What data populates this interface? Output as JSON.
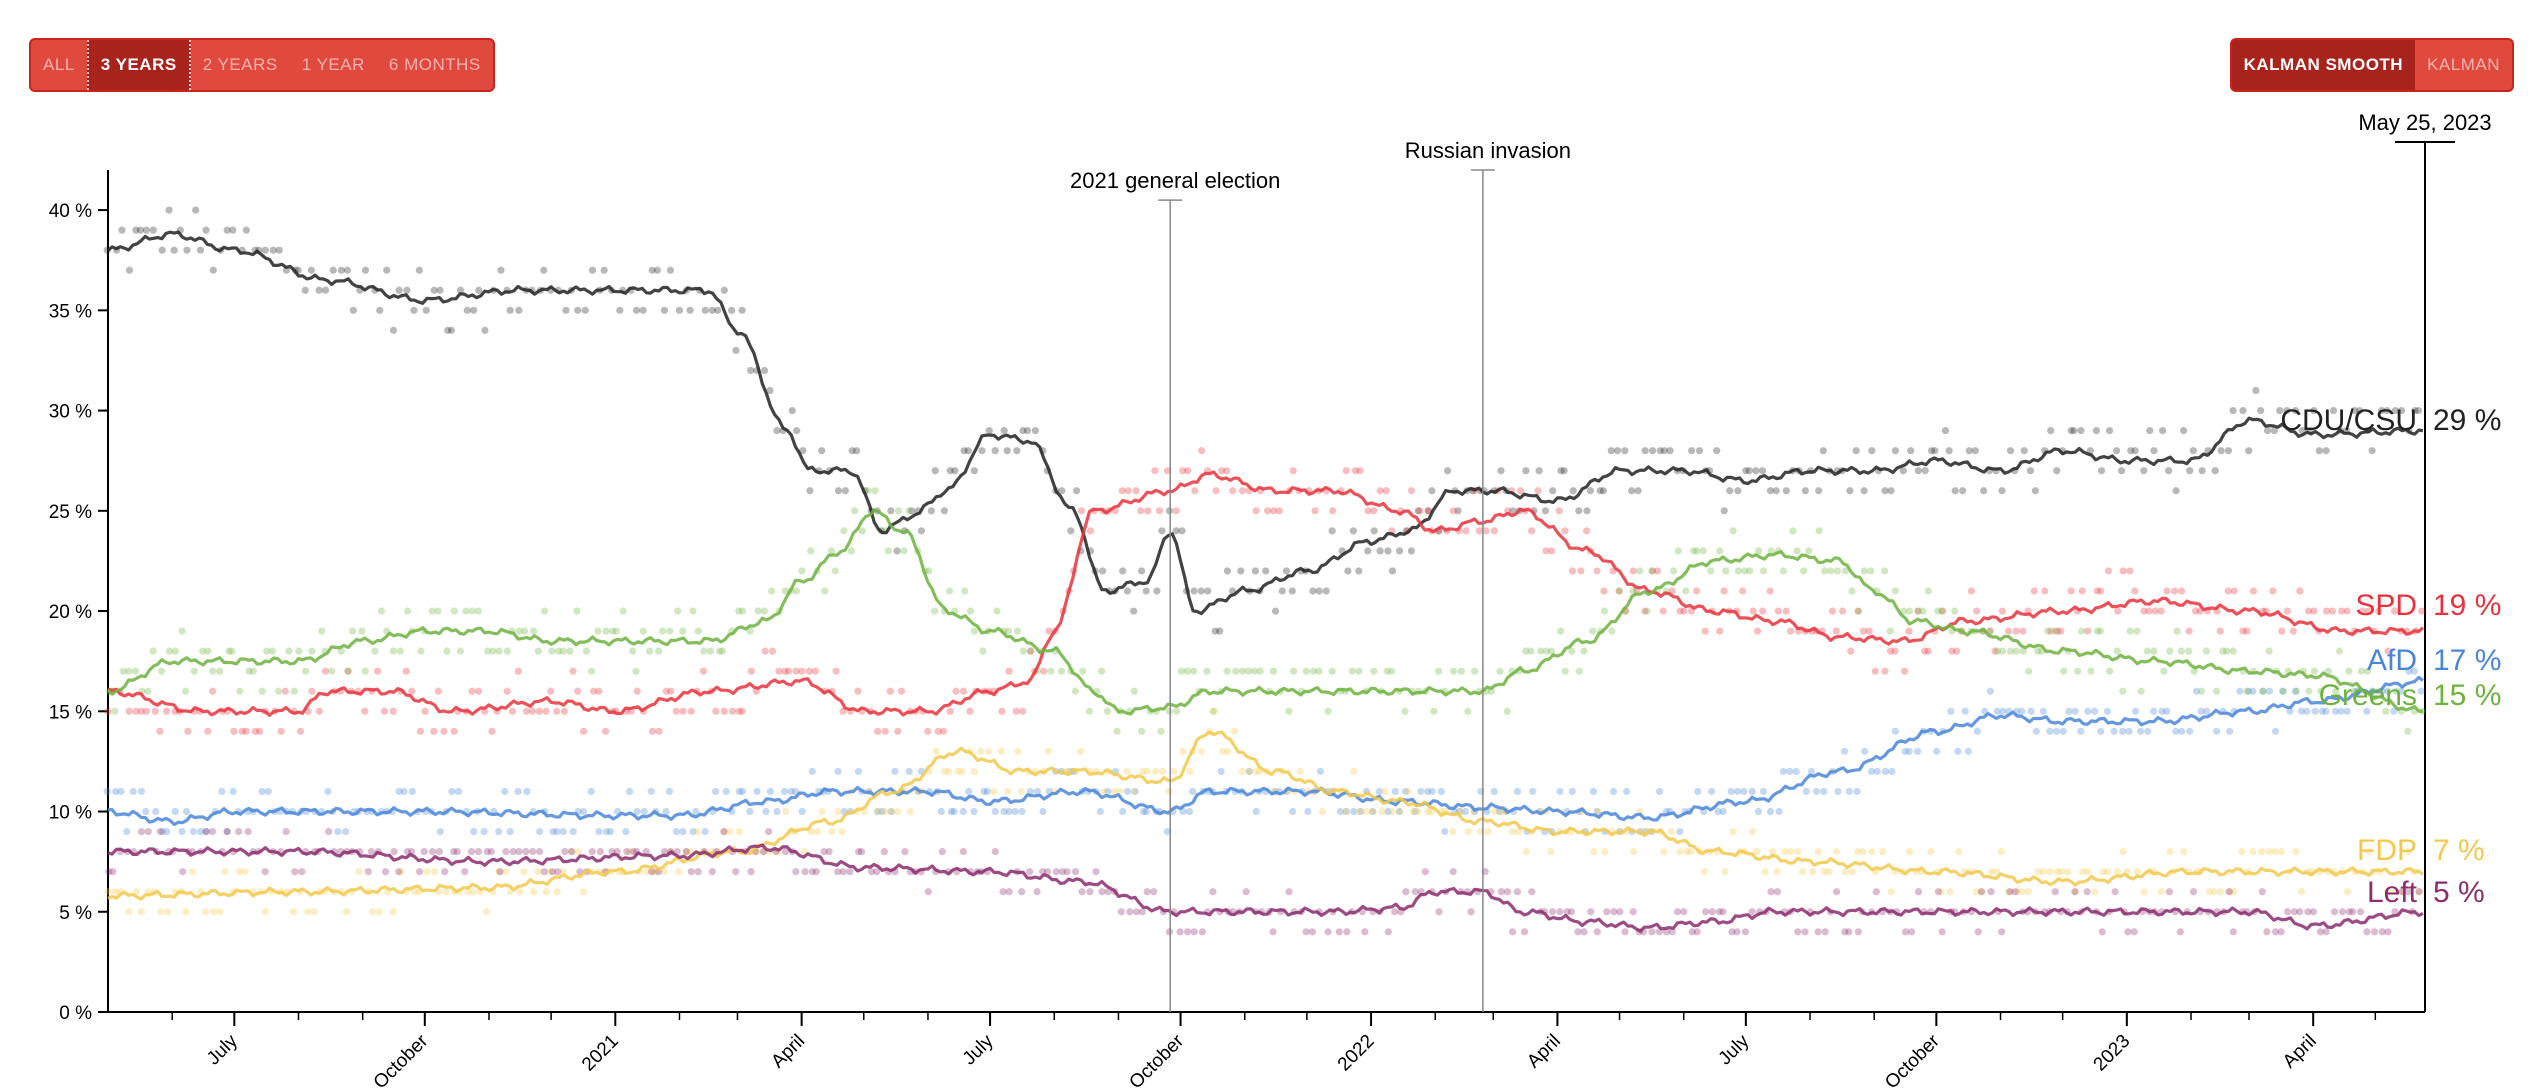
{
  "range_buttons": [
    {
      "label": "ALL",
      "active": false
    },
    {
      "label": "3 YEARS",
      "active": true
    },
    {
      "label": "2 YEARS",
      "active": false
    },
    {
      "label": "1 YEAR",
      "active": false
    },
    {
      "label": "6 MONTHS",
      "active": false
    }
  ],
  "smoothing_buttons": [
    {
      "label": "KALMAN SMOOTH",
      "active": true
    },
    {
      "label": "KALMAN",
      "active": false
    }
  ],
  "colors": {
    "accent": "#d93a2f",
    "accent_dark": "#a8231c",
    "CDU/CSU": "#222222",
    "SPD": "#e8323c",
    "AfD": "#4a86d8",
    "Greens": "#6fb33f",
    "FDP": "#f2c94c",
    "Left": "#8b2d6e"
  },
  "chart_data": {
    "type": "line",
    "title": "",
    "xlabel": "",
    "ylabel": "",
    "x_domain": [
      "2020-05-01",
      "2023-05-25"
    ],
    "ylim": [
      0,
      42
    ],
    "y_ticks": [
      0,
      5,
      10,
      15,
      20,
      25,
      30,
      35,
      40
    ],
    "y_tick_labels": [
      "0 %",
      "5 %",
      "10 %",
      "15 %",
      "20 %",
      "25 %",
      "30 %",
      "35 %",
      "40 %"
    ],
    "x_ticks": [
      {
        "date": "2020-07-01",
        "label": "July"
      },
      {
        "date": "2020-10-01",
        "label": "October"
      },
      {
        "date": "2021-01-01",
        "label": "2021"
      },
      {
        "date": "2021-04-01",
        "label": "April"
      },
      {
        "date": "2021-07-01",
        "label": "July"
      },
      {
        "date": "2021-10-01",
        "label": "October"
      },
      {
        "date": "2022-01-01",
        "label": "2022"
      },
      {
        "date": "2022-04-01",
        "label": "April"
      },
      {
        "date": "2022-07-01",
        "label": "July"
      },
      {
        "date": "2022-10-01",
        "label": "October"
      },
      {
        "date": "2023-01-01",
        "label": "2023"
      },
      {
        "date": "2023-04-01",
        "label": "April"
      }
    ],
    "annotations": [
      {
        "date": "2021-09-26",
        "label": "2021 general election",
        "y": 40.5
      },
      {
        "date": "2022-02-24",
        "label": "Russian invasion",
        "y": 42
      }
    ],
    "current_date_label": "May 25, 2023",
    "series": [
      {
        "name": "CDU/CSU",
        "label": "CDU/CSU",
        "final": "29 %",
        "scatter": 1.4,
        "points": [
          [
            "2020-05-01",
            38
          ],
          [
            "2020-06-01",
            38.8
          ],
          [
            "2020-07-01",
            38
          ],
          [
            "2020-08-15",
            36.5
          ],
          [
            "2020-10-01",
            35.5
          ],
          [
            "2020-11-15",
            36
          ],
          [
            "2021-01-01",
            36
          ],
          [
            "2021-02-15",
            36
          ],
          [
            "2021-03-01",
            34
          ],
          [
            "2021-03-25",
            29
          ],
          [
            "2021-04-05",
            27
          ],
          [
            "2021-04-25",
            27
          ],
          [
            "2021-05-10",
            24
          ],
          [
            "2021-05-25",
            24.8
          ],
          [
            "2021-06-10",
            26
          ],
          [
            "2021-07-01",
            28.8
          ],
          [
            "2021-07-20",
            28.5
          ],
          [
            "2021-08-10",
            25
          ],
          [
            "2021-08-25",
            21
          ],
          [
            "2021-09-15",
            21.5
          ],
          [
            "2021-09-26",
            24
          ],
          [
            "2021-10-08",
            20
          ],
          [
            "2021-11-01",
            21
          ],
          [
            "2021-12-01",
            22
          ],
          [
            "2022-01-01",
            23.5
          ],
          [
            "2022-01-20",
            24
          ],
          [
            "2022-02-10",
            26
          ],
          [
            "2022-03-01",
            26
          ],
          [
            "2022-04-01",
            25.5
          ],
          [
            "2022-05-01",
            27
          ],
          [
            "2022-06-01",
            27
          ],
          [
            "2022-07-01",
            26.5
          ],
          [
            "2022-08-01",
            27
          ],
          [
            "2022-09-01",
            27
          ],
          [
            "2022-10-01",
            27.5
          ],
          [
            "2022-11-01",
            27
          ],
          [
            "2022-12-01",
            28
          ],
          [
            "2023-01-01",
            27.5
          ],
          [
            "2023-02-01",
            27.5
          ],
          [
            "2023-03-01",
            29.5
          ],
          [
            "2023-04-01",
            28.8
          ],
          [
            "2023-05-25",
            29
          ]
        ]
      },
      {
        "name": "SPD",
        "label": "SPD",
        "final": "19 %",
        "scatter": 1.3,
        "points": [
          [
            "2020-05-01",
            16
          ],
          [
            "2020-06-15",
            15
          ],
          [
            "2020-08-01",
            15
          ],
          [
            "2020-08-15",
            16
          ],
          [
            "2020-09-15",
            16
          ],
          [
            "2020-10-15",
            15
          ],
          [
            "2020-12-01",
            15.5
          ],
          [
            "2021-01-01",
            15
          ],
          [
            "2021-02-15",
            16
          ],
          [
            "2021-04-01",
            16.5
          ],
          [
            "2021-05-01",
            15
          ],
          [
            "2021-06-01",
            15
          ],
          [
            "2021-07-01",
            16
          ],
          [
            "2021-07-20",
            16.5
          ],
          [
            "2021-08-01",
            19
          ],
          [
            "2021-08-20",
            25
          ],
          [
            "2021-09-26",
            26
          ],
          [
            "2021-10-15",
            26.8
          ],
          [
            "2021-11-15",
            26
          ],
          [
            "2021-12-15",
            26
          ],
          [
            "2022-01-15",
            25
          ],
          [
            "2022-02-01",
            24
          ],
          [
            "2022-02-24",
            24.5
          ],
          [
            "2022-03-15",
            25
          ],
          [
            "2022-04-15",
            23
          ],
          [
            "2022-05-15",
            21
          ],
          [
            "2022-06-15",
            20
          ],
          [
            "2022-07-15",
            19.5
          ],
          [
            "2022-08-15",
            18.7
          ],
          [
            "2022-09-15",
            18.5
          ],
          [
            "2022-10-15",
            19.5
          ],
          [
            "2022-12-01",
            20
          ],
          [
            "2023-01-15",
            20.5
          ],
          [
            "2023-03-01",
            20
          ],
          [
            "2023-04-15",
            19
          ],
          [
            "2023-05-25",
            19
          ]
        ]
      },
      {
        "name": "AfD",
        "label": "AfD",
        "final": "17 %",
        "scatter": 1.0,
        "points": [
          [
            "2020-05-01",
            10
          ],
          [
            "2020-06-01",
            9.5
          ],
          [
            "2020-07-01",
            10
          ],
          [
            "2020-10-01",
            10
          ],
          [
            "2021-01-01",
            9.8
          ],
          [
            "2021-02-01",
            9.8
          ],
          [
            "2021-03-15",
            10.5
          ],
          [
            "2021-04-15",
            11
          ],
          [
            "2021-06-01",
            11
          ],
          [
            "2021-07-01",
            10.5
          ],
          [
            "2021-08-15",
            11
          ],
          [
            "2021-09-26",
            10
          ],
          [
            "2021-10-15",
            11
          ],
          [
            "2021-12-01",
            11
          ],
          [
            "2022-01-15",
            10.5
          ],
          [
            "2022-02-24",
            10.2
          ],
          [
            "2022-04-01",
            10
          ],
          [
            "2022-05-15",
            9.7
          ],
          [
            "2022-07-01",
            10.5
          ],
          [
            "2022-08-15",
            12
          ],
          [
            "2022-10-01",
            14
          ],
          [
            "2022-11-01",
            14.8
          ],
          [
            "2022-12-01",
            14.5
          ],
          [
            "2023-01-15",
            14.5
          ],
          [
            "2023-03-01",
            15
          ],
          [
            "2023-04-01",
            15.5
          ],
          [
            "2023-05-25",
            16.5
          ]
        ]
      },
      {
        "name": "Greens",
        "label": "Greens",
        "final": "15 %",
        "scatter": 1.3,
        "points": [
          [
            "2020-05-01",
            16
          ],
          [
            "2020-06-01",
            17.5
          ],
          [
            "2020-08-01",
            17.5
          ],
          [
            "2020-09-01",
            18.5
          ],
          [
            "2020-10-01",
            19
          ],
          [
            "2020-11-01",
            19
          ],
          [
            "2020-12-01",
            18.5
          ],
          [
            "2021-01-01",
            18.5
          ],
          [
            "2021-02-15",
            18.5
          ],
          [
            "2021-03-15",
            19.5
          ],
          [
            "2021-04-01",
            21.5
          ],
          [
            "2021-04-20",
            23
          ],
          [
            "2021-05-05",
            25
          ],
          [
            "2021-05-20",
            24
          ],
          [
            "2021-06-10",
            20
          ],
          [
            "2021-07-01",
            19
          ],
          [
            "2021-08-01",
            18
          ],
          [
            "2021-08-20",
            16
          ],
          [
            "2021-09-01",
            15
          ],
          [
            "2021-09-26",
            15.2
          ],
          [
            "2021-10-15",
            16
          ],
          [
            "2022-01-01",
            16
          ],
          [
            "2022-02-24",
            16
          ],
          [
            "2022-03-15",
            17
          ],
          [
            "2022-04-15",
            18.5
          ],
          [
            "2022-05-15",
            21
          ],
          [
            "2022-06-15",
            22.5
          ],
          [
            "2022-07-15",
            22.8
          ],
          [
            "2022-08-15",
            22.5
          ],
          [
            "2022-09-01",
            21
          ],
          [
            "2022-09-20",
            19.5
          ],
          [
            "2022-10-15",
            19
          ],
          [
            "2022-12-01",
            18
          ],
          [
            "2023-01-15",
            17.5
          ],
          [
            "2023-03-01",
            17
          ],
          [
            "2023-04-01",
            16.8
          ],
          [
            "2023-05-25",
            15
          ]
        ]
      },
      {
        "name": "FDP",
        "label": "FDP",
        "final": "7 %",
        "scatter": 1.0,
        "points": [
          [
            "2020-05-01",
            5.8
          ],
          [
            "2020-08-01",
            6
          ],
          [
            "2020-11-01",
            6.2
          ],
          [
            "2021-01-01",
            7
          ],
          [
            "2021-03-01",
            8
          ],
          [
            "2021-04-15",
            9.5
          ],
          [
            "2021-05-15",
            11
          ],
          [
            "2021-06-15",
            13
          ],
          [
            "2021-07-15",
            12
          ],
          [
            "2021-08-15",
            12
          ],
          [
            "2021-09-26",
            11.5
          ],
          [
            "2021-10-15",
            14
          ],
          [
            "2021-11-15",
            12
          ],
          [
            "2021-12-15",
            11
          ],
          [
            "2022-01-15",
            10.5
          ],
          [
            "2022-02-24",
            9.5
          ],
          [
            "2022-04-01",
            9
          ],
          [
            "2022-05-15",
            9
          ],
          [
            "2022-06-15",
            8
          ],
          [
            "2022-08-01",
            7.5
          ],
          [
            "2022-10-01",
            7
          ],
          [
            "2022-12-01",
            6.5
          ],
          [
            "2023-02-01",
            7
          ],
          [
            "2023-03-15",
            7
          ],
          [
            "2023-05-25",
            7
          ]
        ]
      },
      {
        "name": "Left",
        "label": "Left",
        "final": "5 %",
        "scatter": 0.8,
        "points": [
          [
            "2020-05-01",
            8
          ],
          [
            "2020-08-01",
            8
          ],
          [
            "2020-11-01",
            7.5
          ],
          [
            "2021-02-01",
            7.8
          ],
          [
            "2021-03-15",
            8.2
          ],
          [
            "2021-05-01",
            7.2
          ],
          [
            "2021-07-01",
            7
          ],
          [
            "2021-08-15",
            6.5
          ],
          [
            "2021-09-26",
            5
          ],
          [
            "2021-11-01",
            5
          ],
          [
            "2021-12-15",
            5
          ],
          [
            "2022-01-15",
            5.2
          ],
          [
            "2022-02-01",
            6
          ],
          [
            "2022-02-24",
            6
          ],
          [
            "2022-03-15",
            5
          ],
          [
            "2022-04-15",
            4.5
          ],
          [
            "2022-05-15",
            4.2
          ],
          [
            "2022-06-15",
            4.5
          ],
          [
            "2022-07-15",
            5
          ],
          [
            "2022-10-01",
            5
          ],
          [
            "2023-01-01",
            5
          ],
          [
            "2023-03-01",
            5
          ],
          [
            "2023-04-01",
            4.3
          ],
          [
            "2023-05-25",
            5
          ]
        ]
      }
    ]
  }
}
